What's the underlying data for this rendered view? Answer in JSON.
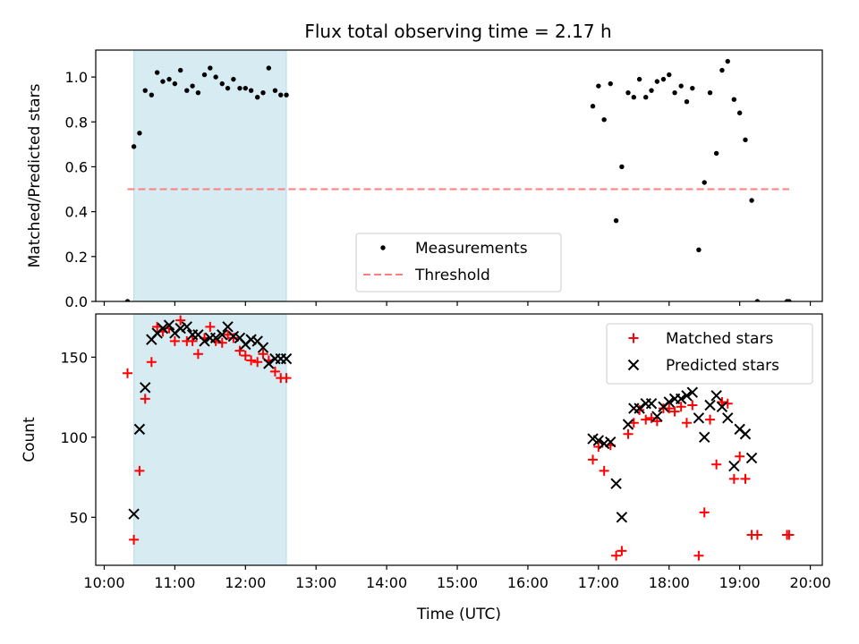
{
  "title": "Flux total observing time = 2.17 h",
  "chart_data": [
    {
      "type": "scatter",
      "ylabel": "Matched/Predicted stars",
      "xlim": [
        9.88,
        20.17
      ],
      "ylim": [
        0,
        1.12
      ],
      "yticks": [
        0.0,
        0.2,
        0.4,
        0.6,
        0.8,
        1.0
      ],
      "ytick_labels": [
        "0.0",
        "0.2",
        "0.4",
        "0.6",
        "0.8",
        "1.0"
      ],
      "shaded_span": [
        10.42,
        12.58
      ],
      "shade_color": "#add8e6",
      "legend_position": "bottom-center",
      "series": [
        {
          "name": "Measurements",
          "type": "scatter",
          "color": "#000000",
          "marker": "dot",
          "points": [
            [
              10.33,
              0.0
            ],
            [
              10.42,
              0.69
            ],
            [
              10.5,
              0.75
            ],
            [
              10.58,
              0.94
            ],
            [
              10.67,
              0.92
            ],
            [
              10.75,
              1.02
            ],
            [
              10.83,
              0.98
            ],
            [
              10.92,
              0.99
            ],
            [
              11.0,
              0.97
            ],
            [
              11.08,
              1.03
            ],
            [
              11.17,
              0.94
            ],
            [
              11.25,
              0.96
            ],
            [
              11.33,
              0.93
            ],
            [
              11.42,
              1.01
            ],
            [
              11.5,
              1.04
            ],
            [
              11.58,
              1.0
            ],
            [
              11.67,
              0.97
            ],
            [
              11.75,
              0.95
            ],
            [
              11.83,
              0.99
            ],
            [
              11.92,
              0.95
            ],
            [
              12.0,
              0.95
            ],
            [
              12.08,
              0.94
            ],
            [
              12.17,
              0.91
            ],
            [
              12.25,
              0.93
            ],
            [
              12.33,
              1.04
            ],
            [
              12.42,
              0.94
            ],
            [
              12.5,
              0.92
            ],
            [
              12.58,
              0.92
            ],
            [
              16.92,
              0.87
            ],
            [
              17.0,
              0.96
            ],
            [
              17.08,
              0.81
            ],
            [
              17.17,
              0.97
            ],
            [
              17.25,
              0.36
            ],
            [
              17.33,
              0.6
            ],
            [
              17.42,
              0.93
            ],
            [
              17.5,
              0.91
            ],
            [
              17.58,
              0.99
            ],
            [
              17.67,
              0.91
            ],
            [
              17.75,
              0.94
            ],
            [
              17.83,
              0.98
            ],
            [
              17.92,
              0.99
            ],
            [
              18.0,
              1.01
            ],
            [
              18.08,
              0.93
            ],
            [
              18.17,
              0.96
            ],
            [
              18.25,
              0.89
            ],
            [
              18.33,
              0.95
            ],
            [
              18.42,
              0.23
            ],
            [
              18.5,
              0.53
            ],
            [
              18.58,
              0.93
            ],
            [
              18.67,
              0.66
            ],
            [
              18.75,
              1.03
            ],
            [
              18.83,
              1.07
            ],
            [
              18.92,
              0.9
            ],
            [
              19.0,
              0.84
            ],
            [
              19.08,
              0.72
            ],
            [
              19.17,
              0.45
            ],
            [
              19.25,
              0.0
            ],
            [
              19.67,
              0.0
            ],
            [
              19.7,
              0.0
            ]
          ]
        },
        {
          "name": "Threshold",
          "type": "line",
          "color": "#ff7f7f",
          "dash": true,
          "x": [
            10.33,
            19.7
          ],
          "y": [
            0.5,
            0.5
          ]
        }
      ]
    },
    {
      "type": "scatter",
      "xlabel": "Time (UTC)",
      "ylabel": "Count",
      "xlim": [
        9.88,
        20.17
      ],
      "ylim": [
        20,
        177
      ],
      "xticks": [
        10,
        11,
        12,
        13,
        14,
        15,
        16,
        17,
        18,
        19,
        20
      ],
      "xtick_labels": [
        "10:00",
        "11:00",
        "12:00",
        "13:00",
        "14:00",
        "15:00",
        "16:00",
        "17:00",
        "18:00",
        "19:00",
        "20:00"
      ],
      "yticks": [
        50,
        100,
        150
      ],
      "ytick_labels": [
        "50",
        "100",
        "150"
      ],
      "shaded_span": [
        10.42,
        12.58
      ],
      "shade_color": "#add8e6",
      "legend_position": "top-right",
      "series": [
        {
          "name": "Matched stars",
          "type": "scatter",
          "color": "#ff0000",
          "marker": "plus",
          "points": [
            [
              10.33,
              140
            ],
            [
              10.42,
              36
            ],
            [
              10.5,
              79
            ],
            [
              10.58,
              124
            ],
            [
              10.67,
              147
            ],
            [
              10.75,
              169
            ],
            [
              10.83,
              166
            ],
            [
              10.92,
              168
            ],
            [
              11.0,
              160
            ],
            [
              11.08,
              173
            ],
            [
              11.17,
              160
            ],
            [
              11.25,
              160
            ],
            [
              11.33,
              152
            ],
            [
              11.42,
              162
            ],
            [
              11.5,
              169
            ],
            [
              11.58,
              160
            ],
            [
              11.67,
              159
            ],
            [
              11.75,
              164
            ],
            [
              11.83,
              162
            ],
            [
              11.92,
              154
            ],
            [
              12.0,
              151
            ],
            [
              12.08,
              148
            ],
            [
              12.17,
              147
            ],
            [
              12.25,
              152
            ],
            [
              12.33,
              148
            ],
            [
              12.42,
              141
            ],
            [
              12.5,
              137
            ],
            [
              12.58,
              137
            ],
            [
              16.92,
              86
            ],
            [
              17.0,
              94
            ],
            [
              17.08,
              79
            ],
            [
              17.17,
              95
            ],
            [
              17.25,
              26
            ],
            [
              17.33,
              29
            ],
            [
              17.42,
              102
            ],
            [
              17.5,
              109
            ],
            [
              17.58,
              117
            ],
            [
              17.67,
              111
            ],
            [
              17.75,
              112
            ],
            [
              17.83,
              110
            ],
            [
              17.92,
              118
            ],
            [
              18.0,
              118
            ],
            [
              18.08,
              116
            ],
            [
              18.17,
              119
            ],
            [
              18.25,
              109
            ],
            [
              18.33,
              120
            ],
            [
              18.42,
              26
            ],
            [
              18.5,
              53
            ],
            [
              18.58,
              111
            ],
            [
              18.67,
              83
            ],
            [
              18.75,
              122
            ],
            [
              18.83,
              121
            ],
            [
              18.92,
              74
            ],
            [
              19.0,
              88
            ],
            [
              19.08,
              74
            ],
            [
              19.17,
              39
            ],
            [
              19.25,
              39
            ],
            [
              19.67,
              39
            ],
            [
              19.7,
              39
            ]
          ]
        },
        {
          "name": "Predicted stars",
          "type": "scatter",
          "color": "#000000",
          "marker": "x",
          "points": [
            [
              10.42,
              52
            ],
            [
              10.5,
              105
            ],
            [
              10.58,
              131
            ],
            [
              10.67,
              161
            ],
            [
              10.75,
              165
            ],
            [
              10.83,
              168
            ],
            [
              10.92,
              170
            ],
            [
              11.0,
              165
            ],
            [
              11.08,
              168
            ],
            [
              11.17,
              169
            ],
            [
              11.25,
              164
            ],
            [
              11.33,
              164
            ],
            [
              11.42,
              160
            ],
            [
              11.5,
              162
            ],
            [
              11.58,
              162
            ],
            [
              11.67,
              164
            ],
            [
              11.75,
              169
            ],
            [
              11.83,
              163
            ],
            [
              11.92,
              162
            ],
            [
              12.0,
              158
            ],
            [
              12.08,
              161
            ],
            [
              12.17,
              160
            ],
            [
              12.25,
              156
            ],
            [
              12.33,
              146
            ],
            [
              12.42,
              149
            ],
            [
              12.5,
              149
            ],
            [
              12.58,
              149
            ],
            [
              16.92,
              99
            ],
            [
              17.0,
              98
            ],
            [
              17.08,
              96
            ],
            [
              17.17,
              97
            ],
            [
              17.25,
              71
            ],
            [
              17.33,
              50
            ],
            [
              17.42,
              108
            ],
            [
              17.5,
              118
            ],
            [
              17.58,
              118
            ],
            [
              17.67,
              121
            ],
            [
              17.75,
              121
            ],
            [
              17.83,
              113
            ],
            [
              17.92,
              119
            ],
            [
              18.0,
              122
            ],
            [
              18.08,
              124
            ],
            [
              18.17,
              124
            ],
            [
              18.25,
              126
            ],
            [
              18.33,
              128
            ],
            [
              18.42,
              112
            ],
            [
              18.5,
              100
            ],
            [
              18.58,
              120
            ],
            [
              18.67,
              126
            ],
            [
              18.75,
              119
            ],
            [
              18.83,
              112
            ],
            [
              18.92,
              82
            ],
            [
              19.0,
              105
            ],
            [
              19.08,
              102
            ],
            [
              19.17,
              87
            ]
          ]
        }
      ]
    }
  ]
}
